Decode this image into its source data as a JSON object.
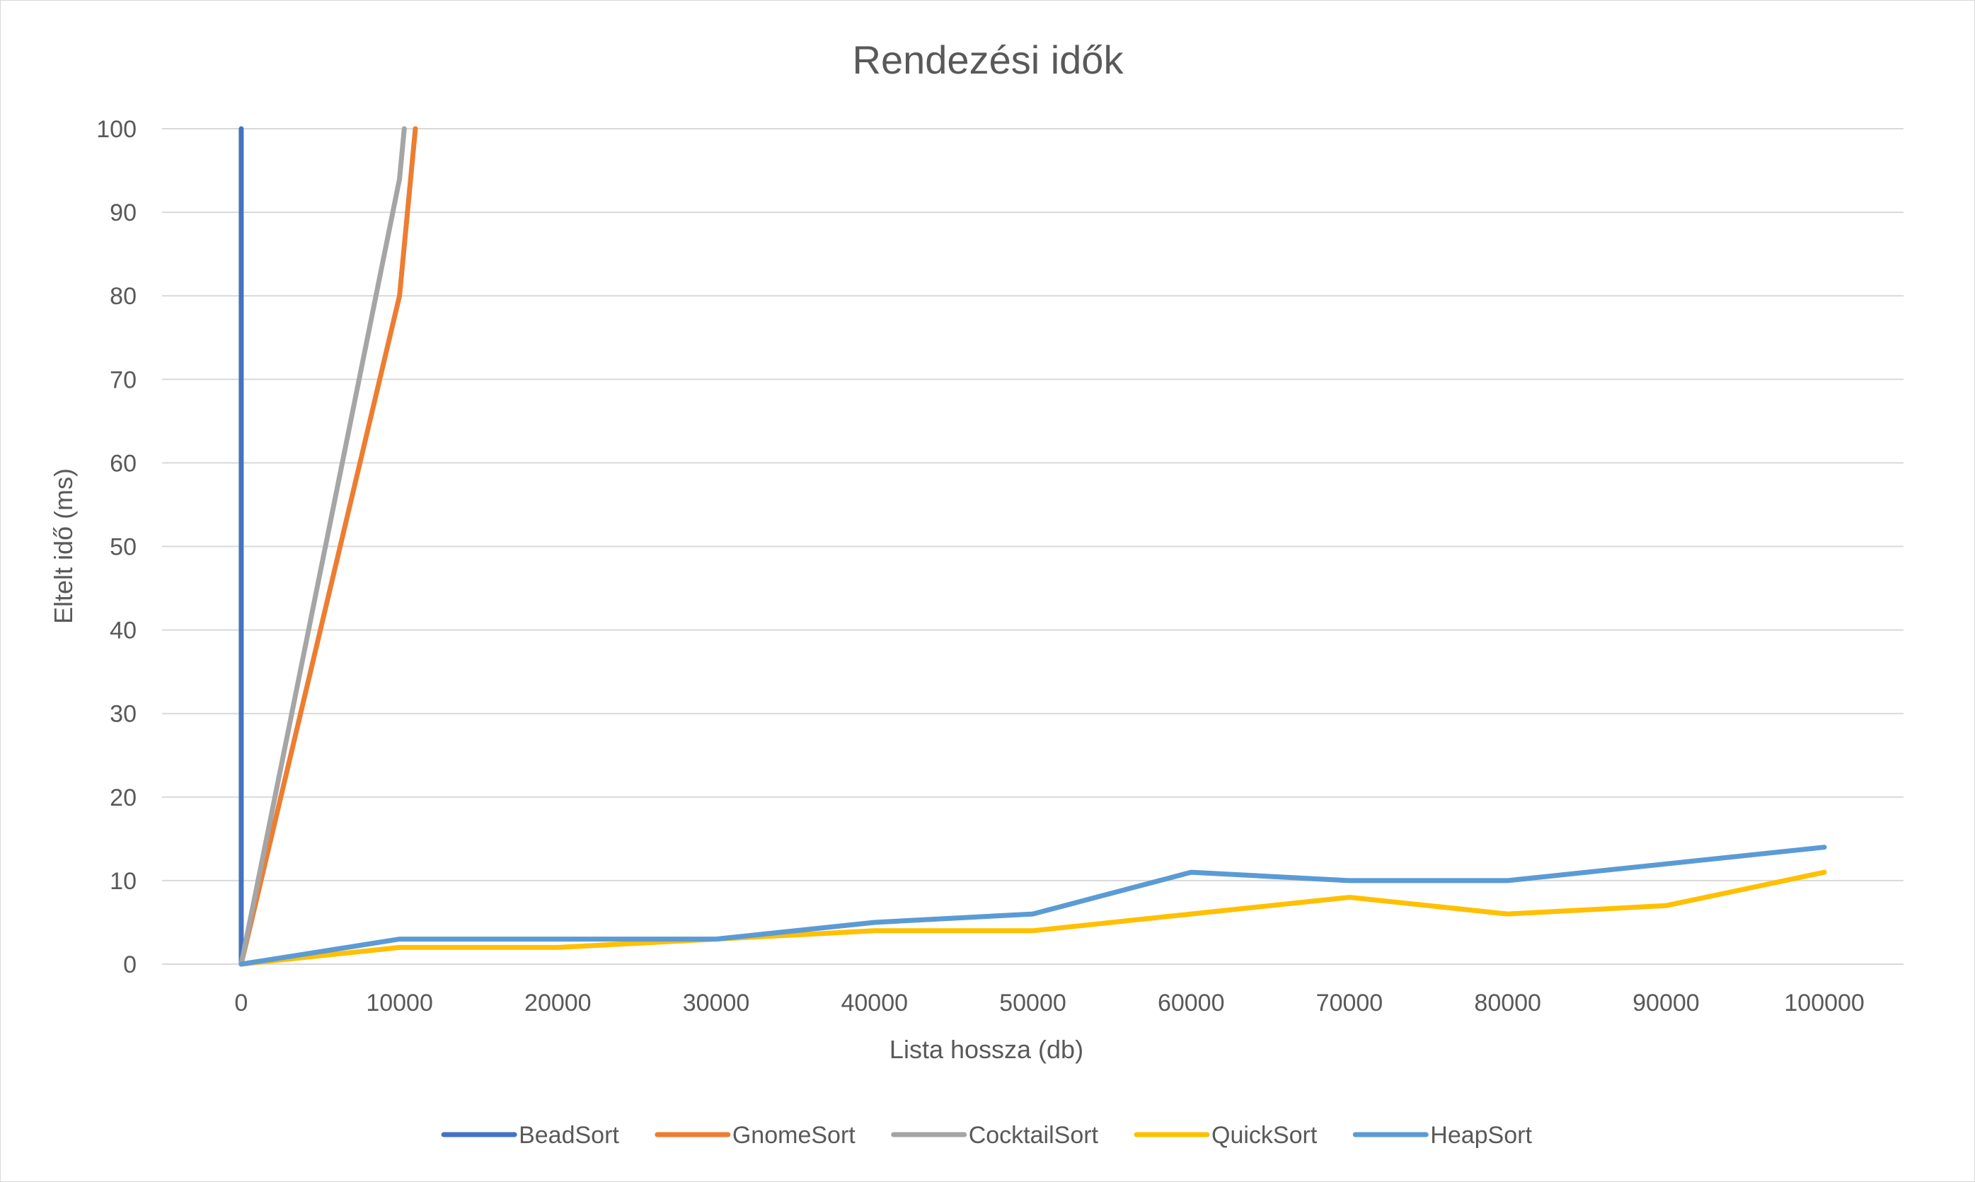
{
  "chart_data": {
    "type": "line",
    "title": "Rendezési idők",
    "xlabel": "Lista hossza (db)",
    "ylabel": "Eltelt idő (ms)",
    "xlim": [
      -5000,
      105000
    ],
    "ylim": [
      0,
      100
    ],
    "x_ticks": [
      0,
      10000,
      20000,
      30000,
      40000,
      50000,
      60000,
      70000,
      80000,
      90000,
      100000
    ],
    "y_ticks": [
      0,
      10,
      20,
      30,
      40,
      50,
      60,
      70,
      80,
      90,
      100
    ],
    "grid": "horizontal",
    "legend": "bottom",
    "series": [
      {
        "name": "BeadSort",
        "color": "#4472c4",
        "points": [
          [
            0,
            0
          ],
          [
            0,
            100
          ]
        ]
      },
      {
        "name": "GnomeSort",
        "color": "#ed7d31",
        "points": [
          [
            0,
            0
          ],
          [
            10000,
            80
          ],
          [
            11000,
            100
          ]
        ]
      },
      {
        "name": "CocktailSort",
        "color": "#a5a5a5",
        "points": [
          [
            0,
            0
          ],
          [
            10000,
            94
          ],
          [
            10300,
            100
          ]
        ]
      },
      {
        "name": "QuickSort",
        "color": "#ffc000",
        "points": [
          [
            0,
            0
          ],
          [
            10000,
            2
          ],
          [
            20000,
            2
          ],
          [
            30000,
            3
          ],
          [
            40000,
            4
          ],
          [
            50000,
            4
          ],
          [
            60000,
            6
          ],
          [
            70000,
            8
          ],
          [
            80000,
            6
          ],
          [
            90000,
            7
          ],
          [
            100000,
            11
          ]
        ]
      },
      {
        "name": "HeapSort",
        "color": "#5b9bd5",
        "points": [
          [
            0,
            0
          ],
          [
            10000,
            3
          ],
          [
            20000,
            3
          ],
          [
            30000,
            3
          ],
          [
            40000,
            5
          ],
          [
            50000,
            6
          ],
          [
            60000,
            11
          ],
          [
            70000,
            10
          ],
          [
            80000,
            10
          ],
          [
            90000,
            12
          ],
          [
            100000,
            14
          ]
        ]
      }
    ]
  }
}
